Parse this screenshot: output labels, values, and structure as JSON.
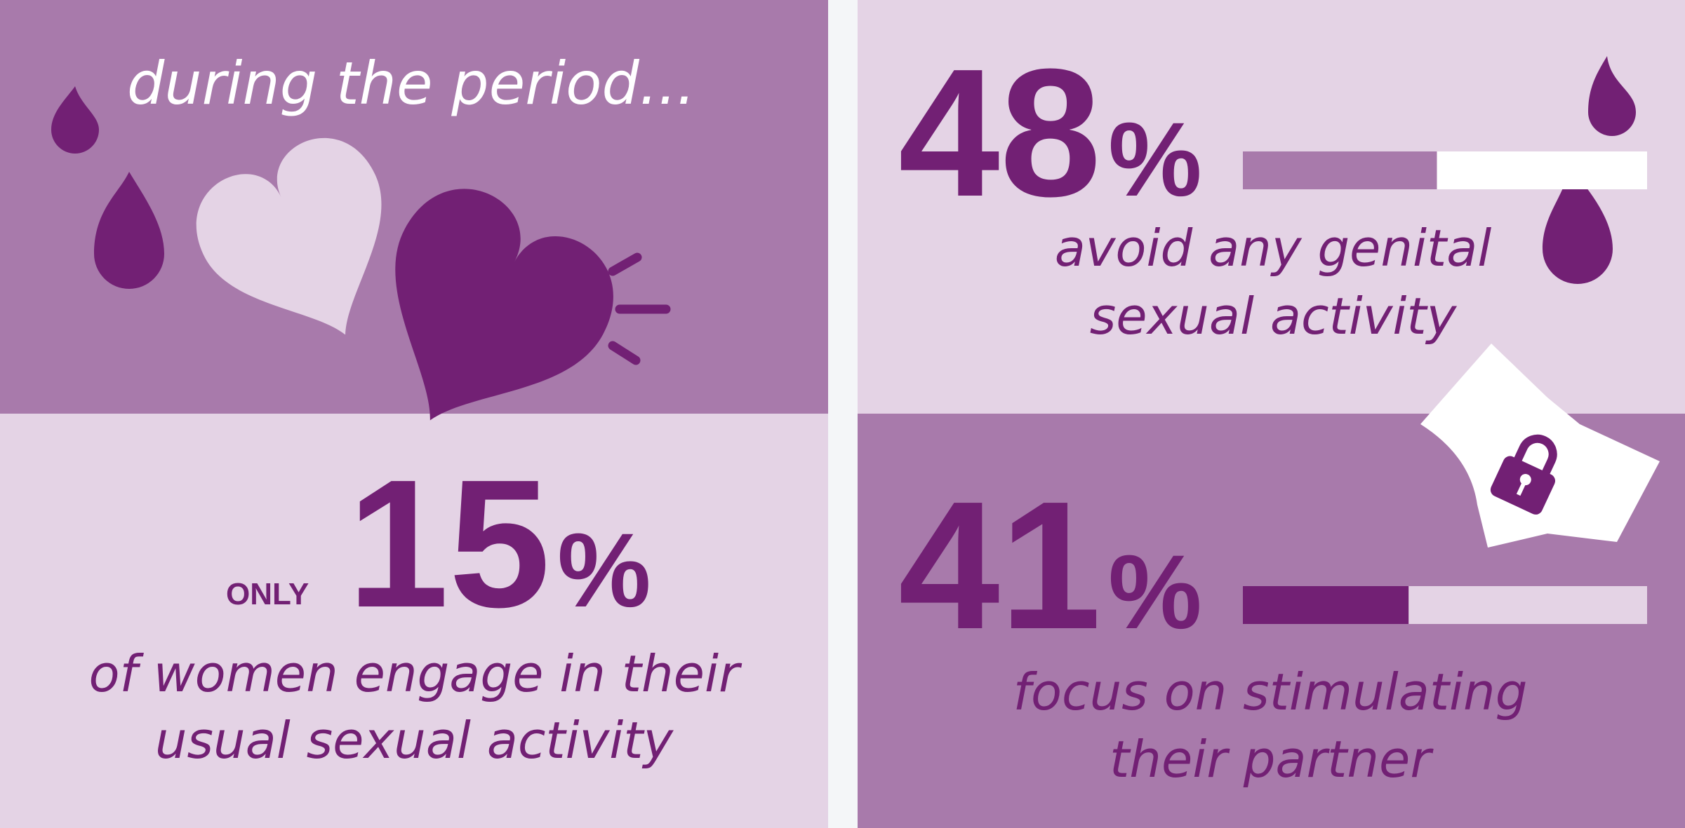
{
  "title": "during the period...",
  "stats": [
    {
      "qualifier": "ONLY",
      "value": 15,
      "value_label": "15%",
      "caption": [
        "of women engage in their",
        "usual sexual activity"
      ]
    },
    {
      "value": 48,
      "value_label": "48%",
      "caption": [
        "avoid any genital",
        "sexual activity"
      ]
    },
    {
      "value": 41,
      "value_label": "41%",
      "caption": [
        "focus on stimulating",
        "their partner"
      ]
    }
  ]
}
